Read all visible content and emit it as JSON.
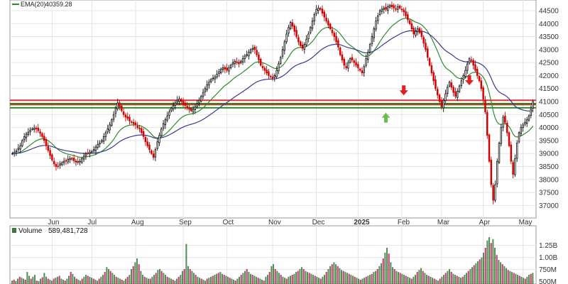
{
  "chart_data": {
    "type": "candlestick",
    "price_panel": {
      "legend": {
        "ema20_label": "EMA(20)",
        "ema20_value": "40359.28",
        "ema20_color": "#2e8b2e",
        "ema50_color": "#3b3b8f"
      },
      "ylim": [
        36600,
        44800
      ],
      "yticks": [
        37000,
        37500,
        38000,
        38500,
        39000,
        39500,
        40000,
        40500,
        41000,
        41500,
        42000,
        42500,
        43000,
        43500,
        44000,
        44500
      ],
      "ytick_labels": [
        "37000",
        "37500",
        "38000",
        "38500",
        "39000",
        "39500",
        "40000",
        "40500",
        "41000",
        "41500",
        "42000",
        "42500",
        "43000",
        "43500",
        "44000",
        "44500"
      ],
      "horizontal_lines": [
        {
          "value": 41050,
          "color": "#e03030"
        },
        {
          "value": 40880,
          "color": "#e03030"
        },
        {
          "value": 40920,
          "color": "#1a8a1a"
        },
        {
          "value": 40760,
          "color": "#1a8a1a"
        }
      ],
      "arrows": [
        {
          "index": 188,
          "value": 40380,
          "direction": "up",
          "color": "#6abf4b"
        },
        {
          "index": 197,
          "value": 41430,
          "direction": "down",
          "color": "#e02020"
        },
        {
          "index": 230,
          "value": 41820,
          "direction": "down",
          "color": "#e02020"
        }
      ],
      "close": [
        39000,
        39050,
        39100,
        39200,
        39300,
        39500,
        39650,
        39750,
        39820,
        39900,
        39950,
        39980,
        39950,
        39880,
        39780,
        39650,
        39500,
        39300,
        39120,
        38920,
        38750,
        38600,
        38500,
        38500,
        38600,
        38650,
        38700,
        38720,
        38780,
        38800,
        38780,
        38720,
        38700,
        38650,
        38700,
        38800,
        38900,
        38980,
        39020,
        39050,
        39080,
        39150,
        39250,
        39350,
        39400,
        39500,
        39650,
        39800,
        39950,
        40100,
        40300,
        40500,
        40750,
        40950,
        40800,
        40650,
        40500,
        40400,
        40350,
        40250,
        40200,
        40150,
        40100,
        40000,
        39950,
        39800,
        39650,
        39450,
        39300,
        39150,
        39000,
        38850,
        39150,
        39450,
        39700,
        39950,
        40150,
        40300,
        40450,
        40600,
        40750,
        40850,
        40950,
        41050,
        41100,
        41000,
        40900,
        40850,
        40750,
        40700,
        40650,
        40700,
        40800,
        40900,
        41050,
        41200,
        41350,
        41500,
        41650,
        41750,
        41850,
        41900,
        41950,
        42050,
        42150,
        42250,
        42300,
        42250,
        42200,
        42300,
        42400,
        42500,
        42550,
        42500,
        42450,
        42550,
        42650,
        42750,
        42800,
        42900,
        43000,
        43050,
        43000,
        42800,
        42600,
        42400,
        42300,
        42200,
        42100,
        42000,
        41950,
        41900,
        42000,
        42200,
        42450,
        42700,
        43000,
        43300,
        43600,
        43850,
        44050,
        43900,
        43700,
        43500,
        43300,
        43150,
        43050,
        43200,
        43400,
        43600,
        43850,
        44100,
        44350,
        44550,
        44600,
        44550,
        44400,
        44250,
        44100,
        43950,
        43800,
        43650,
        43500,
        43300,
        43100,
        42800,
        42600,
        42400,
        42300,
        42500,
        42650,
        42600,
        42500,
        42400,
        42300,
        42200,
        42100,
        42350,
        42650,
        42900,
        43200,
        43500,
        43800,
        44100,
        44300,
        44500,
        44550,
        44600,
        44550,
        44650,
        44700,
        44650,
        44600,
        44550,
        44650,
        44600,
        44550,
        44450,
        44300,
        44150,
        44000,
        43800,
        43600,
        43700,
        43800,
        43650,
        43500,
        43250,
        43000,
        42700,
        42400,
        42100,
        41800,
        41500,
        41250,
        41000,
        40800,
        41050,
        41300,
        41550,
        41750,
        41550,
        41350,
        41200,
        41400,
        41600,
        41800,
        42000,
        42200,
        42450,
        42650,
        42600,
        42400,
        42200,
        42000,
        41800,
        41500,
        41100,
        40600,
        39700,
        38700,
        37800,
        37200,
        37800,
        38700,
        39400,
        40000,
        40400,
        40200,
        39800,
        39300,
        38700,
        38200,
        38800,
        39400,
        39800,
        40000,
        40100,
        40200,
        40300,
        40450,
        40700,
        41000
      ],
      "volume_hint": "see volume_panel"
    },
    "volume_panel": {
      "label": "Volume",
      "value": "589,481,728",
      "ylim": [
        450000000,
        1450000000
      ],
      "yticks": [
        500000000,
        750000000,
        1000000000,
        1250000000
      ],
      "ytick_labels": [
        "500M",
        "750M",
        "1.00B",
        "1.25B"
      ],
      "bar_up_color": "#3a7a3a",
      "bar_down_color": "#c2185b",
      "bars_note": "~300 daily bars; values in shares",
      "bars": [
        520,
        540,
        510,
        560,
        600,
        580,
        560,
        540,
        700,
        620,
        560,
        600,
        640,
        520,
        510,
        560,
        590,
        680,
        600,
        560,
        540,
        520,
        560,
        580,
        600,
        620,
        560,
        540,
        520,
        560,
        620,
        700,
        660,
        600,
        560,
        540,
        520,
        560,
        600,
        640,
        620,
        600,
        580,
        560,
        540,
        520,
        560,
        600,
        640,
        700,
        800,
        760,
        720,
        680,
        640,
        600,
        580,
        560,
        540,
        520,
        560,
        600,
        640,
        760,
        820,
        900,
        980,
        860,
        720,
        640,
        600,
        580,
        560,
        560,
        600,
        640,
        680,
        740,
        760,
        720,
        680,
        640,
        600,
        580,
        560,
        540,
        520,
        560,
        600,
        640,
        720,
        760,
        1280,
        820,
        760,
        720,
        680,
        640,
        600,
        580,
        560,
        540,
        520,
        560,
        580,
        600,
        620,
        640,
        660,
        680,
        700,
        660,
        640,
        620,
        600,
        580,
        560,
        540,
        520,
        560,
        600,
        640,
        680,
        720,
        760,
        700,
        660,
        640,
        620,
        600,
        580,
        560,
        540,
        520,
        600,
        640,
        700,
        820,
        860,
        760,
        720,
        680,
        640,
        600,
        580,
        560,
        600,
        620,
        640,
        660,
        700,
        720,
        760,
        800,
        760,
        720,
        700,
        680,
        660,
        640,
        620,
        600,
        580,
        560,
        600,
        640,
        700,
        760,
        820,
        860,
        900,
        860,
        820,
        780,
        740,
        720,
        700,
        680,
        660,
        640,
        620,
        600,
        580,
        560,
        540,
        560,
        580,
        600,
        620,
        640,
        660,
        700,
        720,
        760,
        820,
        880,
        980,
        1100,
        1200,
        1080,
        900,
        800,
        760,
        720,
        700,
        680,
        660,
        640,
        620,
        600,
        580,
        560,
        600,
        640,
        700,
        740,
        780,
        720,
        680,
        640,
        620,
        600,
        580,
        560,
        540,
        520,
        560,
        600,
        640,
        680,
        720,
        760,
        700,
        660,
        640,
        620,
        600,
        580,
        600,
        640,
        680,
        720,
        760,
        800,
        840,
        880,
        920,
        960,
        1000,
        1100,
        1200,
        1350,
        1420,
        1300,
        1380,
        1200,
        1050,
        950,
        900,
        860,
        820,
        780,
        740,
        720,
        700,
        680,
        660,
        640,
        620,
        600,
        580,
        560,
        600,
        640,
        660,
        680
      ]
    },
    "x_labels": [
      {
        "text": "Jun",
        "index": 20
      },
      {
        "text": "Jul",
        "index": 40
      },
      {
        "text": "Aug",
        "index": 62
      },
      {
        "text": "Sep",
        "index": 86
      },
      {
        "text": "Oct",
        "index": 108
      },
      {
        "text": "Nov",
        "index": 131
      },
      {
        "text": "Dec",
        "index": 153
      },
      {
        "text": "2025",
        "index": 174,
        "bold": true
      },
      {
        "text": "Feb",
        "index": 196
      },
      {
        "text": "Mar",
        "index": 216
      },
      {
        "text": "Apr",
        "index": 237
      },
      {
        "text": "May",
        "index": 257
      }
    ]
  }
}
